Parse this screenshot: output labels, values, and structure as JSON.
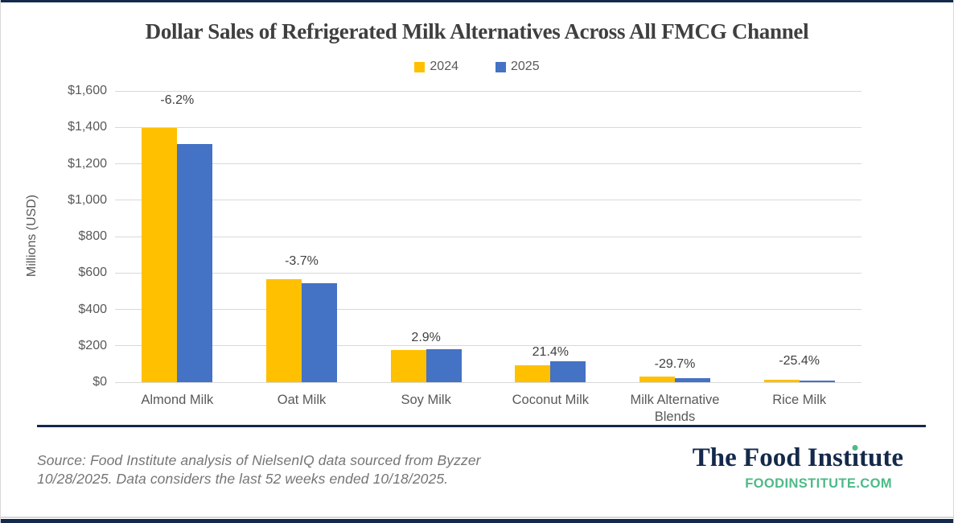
{
  "chart_data": {
    "type": "bar",
    "title": "Dollar Sales of Refrigerated Milk Alternatives Across All FMCG Channel",
    "ylabel": "Millions (USD)",
    "ylim": [
      0,
      1600
    ],
    "ytick_step": 200,
    "ytick_labels": [
      "$0",
      "$200",
      "$400",
      "$600",
      "$800",
      "$1,000",
      "$1,200",
      "$1,400",
      "$1,600"
    ],
    "grid": true,
    "legend_position": "top-center",
    "categories": [
      "Almond Milk",
      "Oat Milk",
      "Soy Milk",
      "Coconut Milk",
      "Milk Alternative Blends",
      "Rice Milk"
    ],
    "series": [
      {
        "name": "2024",
        "color": "#FFC000",
        "values": [
          1395,
          565,
          178,
          93,
          31,
          14
        ]
      },
      {
        "name": "2025",
        "color": "#4472C4",
        "values": [
          1309,
          544,
          183,
          113,
          22,
          10
        ]
      }
    ],
    "change_labels": [
      "-6.2%",
      "-3.7%",
      "2.9%",
      "21.4%",
      "-29.7%",
      "-25.4%"
    ]
  },
  "footer": {
    "source_lines": [
      "Source: Food Institute analysis of NielsenIQ data sourced from Byzzer",
      "10/28/2025. Data considers the last 52 weeks ended 10/18/2025."
    ],
    "logo_text": "The Food Institute",
    "site_text": "FOODINSTITUTE.COM"
  },
  "colors": {
    "series_2024": "#FFC000",
    "series_2025": "#4472C4",
    "navy": "#14294B",
    "green": "#4DBA87",
    "gridline": "#D9D9D9",
    "axis_text": "#595959",
    "title_text": "#3F3F3F",
    "source_text": "#757575"
  }
}
